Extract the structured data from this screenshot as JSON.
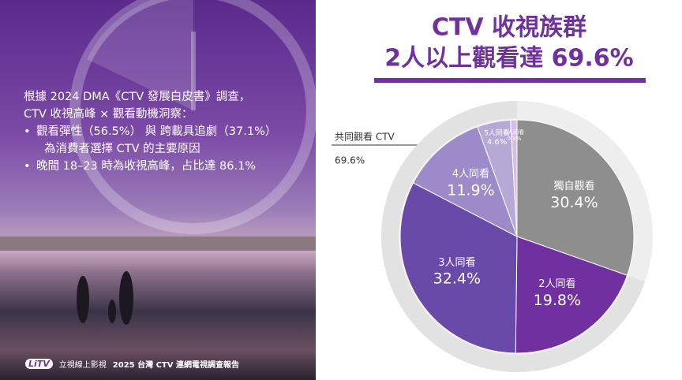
{
  "chart_data": {
    "type": "pie",
    "title": "CTV 收視族群",
    "subtitle": "2人以上觀看達 69.6%",
    "categories": [
      "獨自觀看",
      "2人同看",
      "3人同看",
      "4人同看",
      "5人同看",
      "6人同看"
    ],
    "values": [
      30.4,
      19.8,
      32.4,
      11.9,
      4.6,
      0.9
    ],
    "value_labels": [
      "30.4%",
      "19.8%",
      "32.4%",
      "11.9%",
      "4.6%",
      "0.9%"
    ],
    "colors": [
      "#8e8e8e",
      "#7030a0",
      "#6a4aa8",
      "#9c8bc8",
      "#b6a9d6",
      "#d9bde8"
    ],
    "annotation": {
      "text": "共同觀看 CTV",
      "value": 69.6,
      "value_label": "69.6%"
    }
  },
  "panel": {
    "intro": [
      "根據 2024 DMA《CTV 發展白皮書》調查，",
      "CTV 收視高峰 × 觀看動機洞察："
    ],
    "bullets": [
      [
        "觀看彈性（56.5%） 與 跨載具追劇（37.1%）",
        "為消費者選擇 CTV 的主要原因"
      ],
      [
        "晚間 18–23 時為收視高峰，占比達 86.1%"
      ]
    ]
  },
  "footer": {
    "logo": "LiTV",
    "brand": "立視線上影視",
    "report": "2025 台灣 CTV 連網電視調查報告"
  }
}
